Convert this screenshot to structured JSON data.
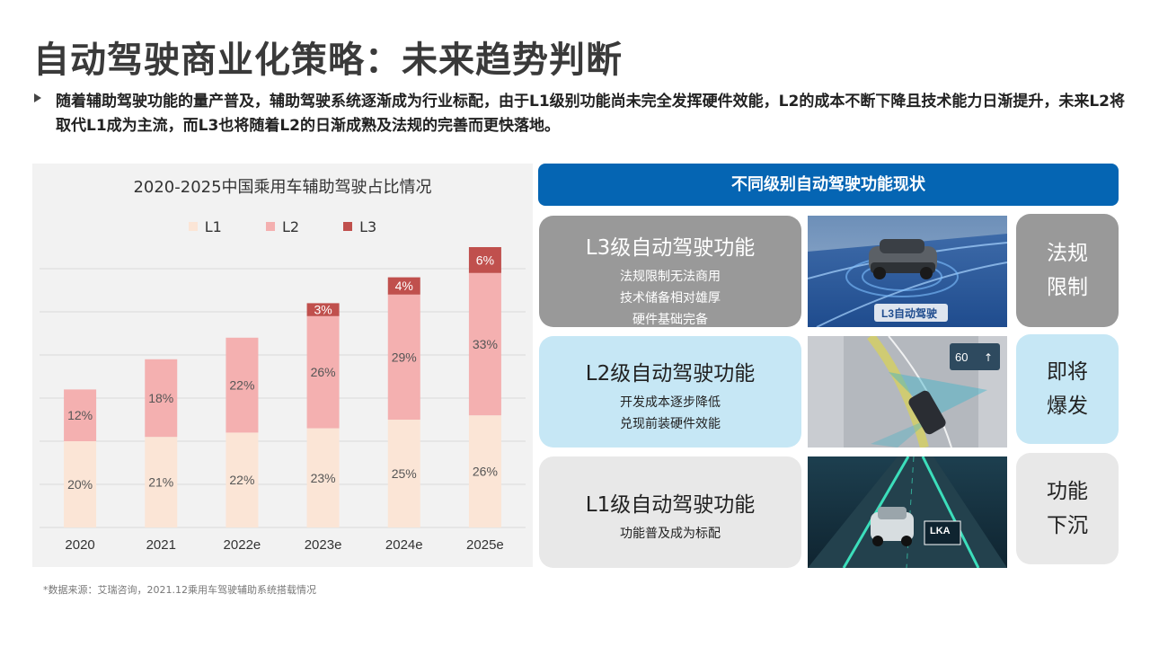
{
  "page": {
    "title": "自动驾驶商业化策略：未来趋势判断",
    "summary": "随着辅助驾驶功能的量产普及，辅助驾驶系统逐渐成为行业标配，由于L1级别功能尚未完全发挥硬件效能，L2的成本不断下降且技术能力日渐提升，未来L2将取代L1成为主流，而L3也将随着L2的日渐成熟及法规的完善而更快落地。",
    "source": "*数据来源：艾瑞咨询，2021.12乘用车驾驶辅助系统搭载情况"
  },
  "chart_data": {
    "type": "bar",
    "stacked": true,
    "title": "2020-2025中国乘用车辅助驾驶占比情况",
    "categories": [
      "2020",
      "2021",
      "2022e",
      "2023e",
      "2024e",
      "2025e"
    ],
    "series": [
      {
        "name": "L1",
        "color": "#fbe5d6",
        "values": [
          20,
          21,
          22,
          23,
          25,
          26
        ],
        "labels": [
          "20%",
          "21%",
          "22%",
          "23%",
          "25%",
          "26%"
        ]
      },
      {
        "name": "L2",
        "color": "#f4b0b0",
        "values": [
          12,
          18,
          22,
          26,
          29,
          33
        ],
        "labels": [
          "12%",
          "18%",
          "22%",
          "26%",
          "29%",
          "33%"
        ]
      },
      {
        "name": "L3",
        "color": "#c0504d",
        "values": [
          0,
          0,
          0,
          3,
          4,
          6
        ],
        "labels": [
          "",
          "",
          "",
          "3%",
          "4%",
          "6%"
        ]
      }
    ],
    "ylim": [
      0,
      65
    ],
    "grid": true,
    "legend_position": "top"
  },
  "right_panel": {
    "header": "不同级别自动驾驶功能现状",
    "levels": [
      {
        "title": "L3级自动驾驶功能",
        "lines": [
          "法规限制无法商用",
          "技术储备相对雄厚",
          "硬件基础完备"
        ],
        "status": [
          "法规",
          "限制"
        ],
        "photo_label": "L3自动驾驶",
        "color": "#999999"
      },
      {
        "title": "L2级自动驾驶功能",
        "lines": [
          "开发成本逐步降低",
          "兑现前装硬件效能"
        ],
        "status": [
          "即将",
          "爆发"
        ],
        "photo_label": "60",
        "color": "#c6e7f5"
      },
      {
        "title": "L1级自动驾驶功能",
        "lines": [
          "功能普及成为标配"
        ],
        "status": [
          "功能",
          "下沉"
        ],
        "photo_label": "LKA",
        "color": "#e8e8e8"
      }
    ]
  }
}
